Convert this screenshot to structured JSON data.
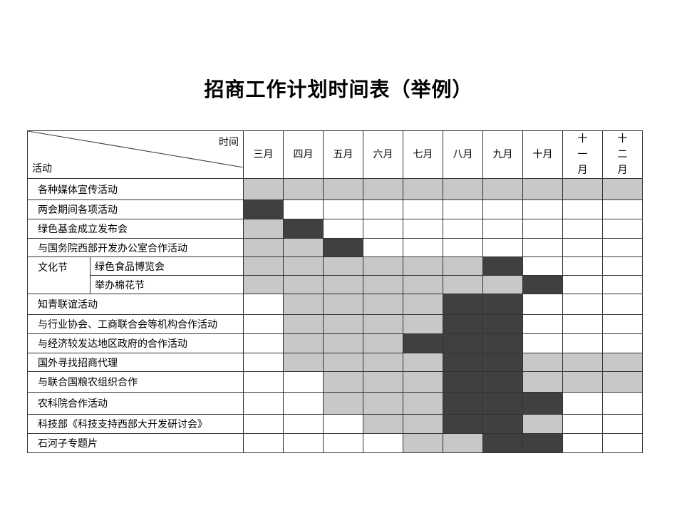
{
  "title": "招商工作计划时间表（举例）",
  "header": {
    "time_label": "时间",
    "activity_label": "活动",
    "months": [
      "三月",
      "四月",
      "五月",
      "六月",
      "七月",
      "八月",
      "九月",
      "十月",
      "十一月",
      "十二月"
    ]
  },
  "legend_colors": {
    "light": "#c8c8c8",
    "dark": "#404040",
    "none": "#ffffff"
  },
  "group": {
    "name": "文化节"
  },
  "rows": [
    {
      "name": "各种媒体宣传活动",
      "cells": "gggggggggg"
    },
    {
      "name": "两会期间各项活动",
      "cells": "dwwwwwwwww"
    },
    {
      "name": "绿色基金成立发布会",
      "cells": "gdwwwwwwww"
    },
    {
      "name": "与国务院西部开发办公室合作活动",
      "cells": "ggdwwwwwww"
    },
    {
      "name": "绿色食品博览会",
      "cells": "ggggggdwww",
      "grouped": true
    },
    {
      "name": "举办棉花节",
      "cells": "gggggggdww",
      "grouped": true
    },
    {
      "name": "知青联谊活动",
      "cells": "wggggddwww"
    },
    {
      "name": "与行业协会、工商联合会等机构合作活动",
      "cells": "wggggddwww"
    },
    {
      "name": "与经济较发达地区政府的合作活动",
      "cells": "wgggdddwww"
    },
    {
      "name": "国外寻找招商代理",
      "cells": "wggggddggg"
    },
    {
      "name": "与联合国粮农组织合作",
      "cells": "wwgggddggg"
    },
    {
      "name": "农科院合作活动",
      "cells": "wwgggdddww"
    },
    {
      "name": "科技部《科技支持西部大开发研讨会》",
      "cells": "wwwggddgww"
    },
    {
      "name": "石河子专题片",
      "cells": "wwwwggddww"
    }
  ]
}
